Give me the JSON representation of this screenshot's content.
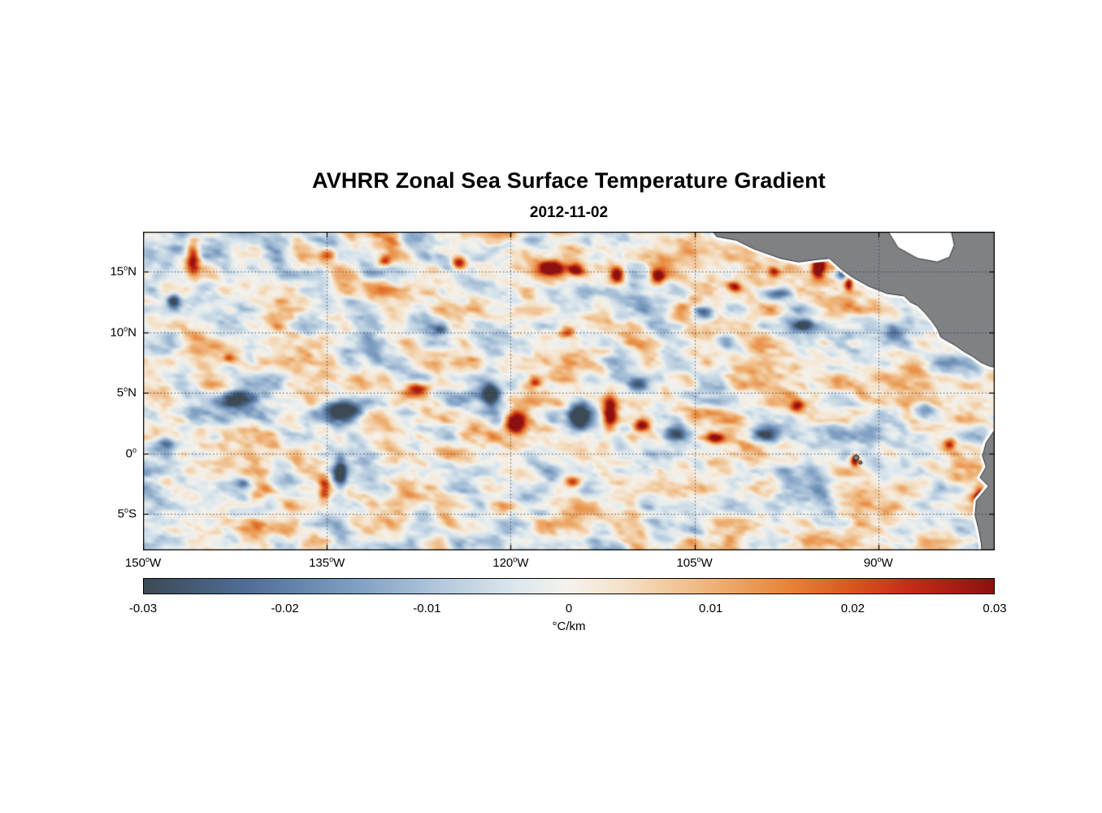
{
  "title": {
    "text": "AVHRR Zonal Sea Surface Temperature Gradient"
  },
  "subtitle": {
    "text": "2012-11-02"
  },
  "chart_data": {
    "type": "heatmap",
    "title": "AVHRR Zonal Sea Surface Temperature Gradient",
    "subtitle_date": "2012-11-02",
    "variable": "zonal sea surface temperature gradient",
    "units": "°C/km",
    "xlim": [
      -150,
      -80.5
    ],
    "ylim": [
      -8,
      18.3
    ],
    "x_ticks": [
      {
        "lon": -150,
        "deg": "150",
        "hemi": "W"
      },
      {
        "lon": -135,
        "deg": "135",
        "hemi": "W"
      },
      {
        "lon": -120,
        "deg": "120",
        "hemi": "W"
      },
      {
        "lon": -105,
        "deg": "105",
        "hemi": "W"
      },
      {
        "lon": -90,
        "deg": "90",
        "hemi": "W"
      }
    ],
    "y_ticks": [
      {
        "lat": 15,
        "deg": "15",
        "hemi": "N"
      },
      {
        "lat": 10,
        "deg": "10",
        "hemi": "N"
      },
      {
        "lat": 5,
        "deg": "5",
        "hemi": "N"
      },
      {
        "lat": 0,
        "deg": "0",
        "hemi": ""
      },
      {
        "lat": -5,
        "deg": "5",
        "hemi": "S"
      }
    ],
    "grid": {
      "on": true,
      "style": "dotted",
      "color": "rgba(45,45,60,0.75)"
    },
    "colorbar": {
      "min": -0.03,
      "max": 0.03,
      "label": "°C/km",
      "ticks": [
        {
          "value": -0.03,
          "label": "-0.03"
        },
        {
          "value": -0.02,
          "label": "-0.02"
        },
        {
          "value": -0.01,
          "label": "-0.01"
        },
        {
          "value": 0,
          "label": "0"
        },
        {
          "value": 0.01,
          "label": "0.01"
        },
        {
          "value": 0.02,
          "label": "0.02"
        },
        {
          "value": 0.03,
          "label": "0.03"
        }
      ]
    },
    "colormap_stops": [
      [
        0.0,
        "#3b4a55"
      ],
      [
        0.12,
        "#4f6d96"
      ],
      [
        0.25,
        "#7f9fc3"
      ],
      [
        0.35,
        "#b3c9dd"
      ],
      [
        0.44,
        "#dde8ee"
      ],
      [
        0.5,
        "#f5f2ec"
      ],
      [
        0.56,
        "#f5e3cb"
      ],
      [
        0.65,
        "#f0bb84"
      ],
      [
        0.75,
        "#e8883c"
      ],
      [
        0.83,
        "#da581e"
      ],
      [
        0.9,
        "#c62c16"
      ],
      [
        1.0,
        "#8d1010"
      ]
    ],
    "land_color": "#7f8184",
    "coast_halo_color": "#ffffff",
    "coast_line_color": "rgba(35,35,35,0.9)",
    "field_model": {
      "comment": "procedural approximation of the gradient field: background value-noise plus gaussian anomalies [lon, lat, rx_deg, ry_deg, amplitude]; amplitude 1 = +0.03 C/km, -1 = -0.03 C/km",
      "noise": {
        "seed": 7,
        "scale_lon": 2.4,
        "scale_lat": 1.5,
        "skew": 0.18,
        "amplitude": 0.55
      },
      "blobs": [
        [
          -145.9,
          16.2,
          0.55,
          1.4,
          1.1
        ],
        [
          -134.9,
          16.3,
          0.7,
          0.5,
          0.95
        ],
        [
          -130.3,
          15.8,
          0.5,
          0.4,
          0.8
        ],
        [
          -124.2,
          15.7,
          0.6,
          0.5,
          1.0
        ],
        [
          -116.8,
          15.3,
          1.0,
          0.6,
          1.2
        ],
        [
          -114.6,
          15.1,
          0.7,
          0.5,
          1.1
        ],
        [
          -111.3,
          14.7,
          0.6,
          0.7,
          1.25
        ],
        [
          -108.0,
          14.6,
          0.55,
          0.6,
          1.05
        ],
        [
          -101.7,
          13.7,
          0.6,
          0.5,
          0.95
        ],
        [
          -98.5,
          15.0,
          0.5,
          0.4,
          0.8
        ],
        [
          -94.9,
          15.4,
          0.5,
          1.0,
          1.4
        ],
        [
          -92.4,
          14.0,
          0.35,
          0.5,
          1.1
        ],
        [
          -115.3,
          10.1,
          0.7,
          0.5,
          0.85
        ],
        [
          -127.6,
          5.2,
          1.0,
          0.6,
          0.9
        ],
        [
          -118.0,
          5.9,
          0.6,
          0.45,
          0.85
        ],
        [
          -119.6,
          2.6,
          0.9,
          0.8,
          1.3
        ],
        [
          -111.9,
          3.3,
          0.6,
          1.3,
          1.4
        ],
        [
          -109.3,
          2.3,
          0.6,
          0.5,
          1.0
        ],
        [
          -103.3,
          1.3,
          0.9,
          0.5,
          0.95
        ],
        [
          -96.6,
          4.0,
          0.6,
          0.5,
          0.9
        ],
        [
          -91.9,
          -0.55,
          0.35,
          0.5,
          1.35
        ],
        [
          -84.2,
          0.8,
          0.5,
          0.5,
          0.9
        ],
        [
          -81.6,
          -3.7,
          0.5,
          1.0,
          1.4
        ],
        [
          -135.2,
          -2.9,
          0.5,
          1.1,
          1.0
        ],
        [
          -114.9,
          -2.4,
          0.7,
          0.5,
          0.85
        ],
        [
          -143.0,
          7.9,
          0.5,
          0.4,
          0.7
        ],
        [
          -147.5,
          12.6,
          0.5,
          0.6,
          -0.9
        ],
        [
          -142.5,
          4.4,
          1.6,
          0.7,
          -1.2
        ],
        [
          -133.6,
          3.6,
          1.4,
          0.9,
          -1.25
        ],
        [
          -121.6,
          4.9,
          0.8,
          0.9,
          -1.2
        ],
        [
          -114.4,
          3.1,
          0.8,
          1.0,
          -1.35
        ],
        [
          -106.6,
          1.6,
          1.0,
          0.6,
          -1.1
        ],
        [
          -99.2,
          1.6,
          1.2,
          0.7,
          -1.15
        ],
        [
          -125.6,
          10.3,
          0.7,
          0.5,
          -0.85
        ],
        [
          -104.2,
          11.6,
          1.0,
          0.6,
          -1.0
        ],
        [
          -98.3,
          13.2,
          1.1,
          0.5,
          -1.05
        ],
        [
          -92.9,
          14.9,
          0.5,
          0.6,
          -1.0
        ],
        [
          -96.2,
          10.6,
          0.8,
          0.5,
          -0.9
        ],
        [
          -88.6,
          10.1,
          1.0,
          0.8,
          -0.85
        ],
        [
          -133.9,
          -1.6,
          0.5,
          1.2,
          -1.1
        ],
        [
          -141.9,
          -2.6,
          0.7,
          0.5,
          -0.8
        ],
        [
          -86.2,
          3.6,
          1.0,
          0.7,
          -0.9
        ],
        [
          -148.1,
          0.8,
          0.7,
          0.5,
          -0.8
        ],
        [
          -120.3,
          17.2,
          0.8,
          0.5,
          -0.6
        ],
        [
          -109.6,
          5.6,
          0.8,
          0.5,
          -0.8
        ]
      ]
    },
    "geography": {
      "central_america": [
        [
          -104.0,
          19.0
        ],
        [
          -103.2,
          17.9
        ],
        [
          -101.6,
          17.6
        ],
        [
          -100.2,
          16.9
        ],
        [
          -98.0,
          16.1
        ],
        [
          -96.5,
          15.8
        ],
        [
          -95.0,
          16.0
        ],
        [
          -94.0,
          16.1
        ],
        [
          -93.0,
          15.2
        ],
        [
          -92.2,
          14.6
        ],
        [
          -90.8,
          13.8
        ],
        [
          -89.3,
          13.2
        ],
        [
          -87.9,
          13.0
        ],
        [
          -87.4,
          12.5
        ],
        [
          -86.8,
          12.2
        ],
        [
          -86.2,
          11.6
        ],
        [
          -85.7,
          11.0
        ],
        [
          -85.2,
          10.3
        ],
        [
          -84.9,
          9.6
        ],
        [
          -84.4,
          9.3
        ],
        [
          -83.7,
          8.9
        ],
        [
          -83.0,
          8.4
        ],
        [
          -82.3,
          8.0
        ],
        [
          -81.6,
          7.5
        ],
        [
          -80.9,
          7.2
        ],
        [
          -80.0,
          7.0
        ],
        [
          -78.0,
          7.5
        ],
        [
          -78.0,
          19.0
        ]
      ],
      "caribbean_notch": [
        [
          -89.6,
          19.0
        ],
        [
          -88.4,
          17.0
        ],
        [
          -86.8,
          16.1
        ],
        [
          -85.2,
          15.8
        ],
        [
          -84.2,
          16.2
        ],
        [
          -83.8,
          17.2
        ],
        [
          -84.2,
          19.0
        ]
      ],
      "south_america": [
        [
          -80.6,
          1.8
        ],
        [
          -81.2,
          0.9
        ],
        [
          -81.5,
          -0.2
        ],
        [
          -81.2,
          -1.1
        ],
        [
          -81.7,
          -2.0
        ],
        [
          -81.0,
          -2.7
        ],
        [
          -82.0,
          -3.9
        ],
        [
          -82.1,
          -5.1
        ],
        [
          -81.8,
          -6.3
        ],
        [
          -81.6,
          -7.4
        ],
        [
          -81.5,
          -8.8
        ],
        [
          -77.0,
          -8.8
        ],
        [
          -77.0,
          1.4
        ]
      ],
      "galapagos_marks": [
        [
          -91.8,
          -0.35,
          3.2
        ],
        [
          -91.45,
          -0.75,
          2.0
        ]
      ]
    }
  }
}
